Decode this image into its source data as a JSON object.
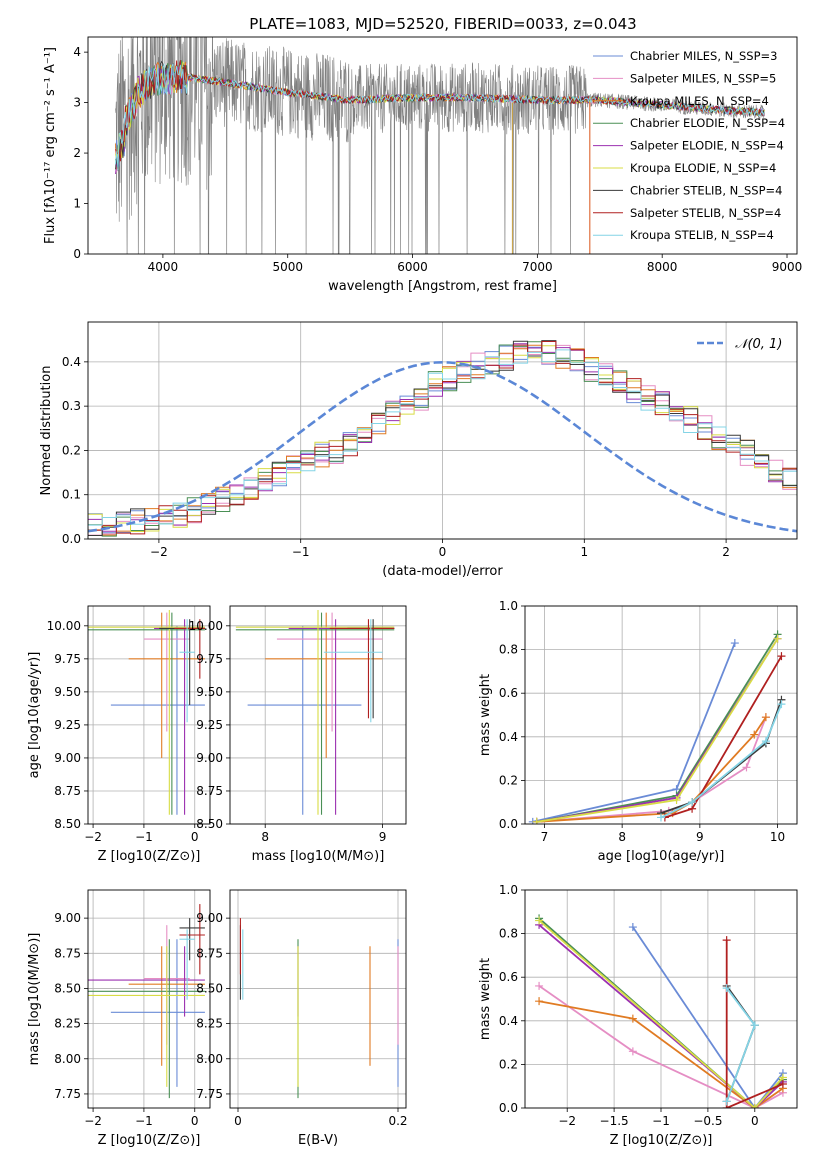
{
  "title": "PLATE=1083, MJD=52520, FIBERID=0033, z=0.043",
  "model_colors": [
    "#6a8bd6",
    "#e58ec4",
    "#e07b23",
    "#4a8f55",
    "#9b30b0",
    "#d8dc45",
    "#3a3a3a",
    "#b02020",
    "#84d4e6"
  ],
  "chart_data": [
    {
      "type": "line",
      "xlabel": "wavelength [Angstrom, rest frame]",
      "ylabel": "Flux [fλ10⁻¹⁷ erg cm⁻² s⁻¹ A⁻¹]",
      "xlim": [
        3400,
        9080
      ],
      "ylim": [
        0,
        4.3
      ],
      "xticks": [
        4000,
        5000,
        6000,
        7000,
        8000,
        9000
      ],
      "yticks": [
        0,
        1,
        2,
        3,
        4
      ],
      "legend_position": "right",
      "series": [
        {
          "name": "Chabrier MILES, N_SSP=3"
        },
        {
          "name": "Salpeter MILES, N_SSP=5"
        },
        {
          "name": "Kroupa MILES, N_SSP=4"
        },
        {
          "name": "Chabrier ELODIE, N_SSP=4"
        },
        {
          "name": "Salpeter ELODIE, N_SSP=4"
        },
        {
          "name": "Kroupa ELODIE, N_SSP=4"
        },
        {
          "name": "Chabrier STELIB, N_SSP=4"
        },
        {
          "name": "Salpeter STELIB, N_SSP=4"
        },
        {
          "name": "Kroupa STELIB, N_SSP=4"
        }
      ],
      "data_envelope": {
        "x": [
          3620,
          3700,
          3800,
          3900,
          4000,
          4200,
          4500,
          5000,
          5500,
          6000,
          6500,
          7000,
          7500,
          8000,
          8500,
          8800
        ],
        "y": [
          2.2,
          2.6,
          3.2,
          3.4,
          3.5,
          3.5,
          3.4,
          3.2,
          3.05,
          3.1,
          3.1,
          3.05,
          3.05,
          2.95,
          2.85,
          2.8
        ]
      }
    },
    {
      "type": "histogram",
      "xlabel": "(data-model)/error",
      "ylabel": "Normed distribution",
      "xlim": [
        -2.5,
        2.5
      ],
      "ylim": [
        0,
        0.49
      ],
      "xticks": [
        -2,
        -1,
        0,
        1,
        2
      ],
      "yticks": [
        0.0,
        0.1,
        0.2,
        0.3,
        0.4
      ],
      "legend": "𝒩(0, 1)",
      "legend_position": "top-right",
      "bin_edges_start": -2.6,
      "bin_width": 0.1,
      "values": [
        0.03,
        0.03,
        0.032,
        0.035,
        0.04,
        0.045,
        0.05,
        0.055,
        0.065,
        0.08,
        0.09,
        0.1,
        0.115,
        0.13,
        0.15,
        0.16,
        0.18,
        0.19,
        0.2,
        0.215,
        0.235,
        0.26,
        0.285,
        0.3,
        0.32,
        0.35,
        0.36,
        0.38,
        0.39,
        0.395,
        0.41,
        0.42,
        0.425,
        0.42,
        0.41,
        0.4,
        0.385,
        0.37,
        0.35,
        0.335,
        0.32,
        0.305,
        0.29,
        0.27,
        0.25,
        0.23,
        0.215,
        0.195,
        0.175,
        0.155,
        0.135,
        0.115,
        0.1,
        0.085,
        0.07,
        0.06,
        0.052,
        0.045,
        0.04,
        0.035,
        0.03,
        0.028
      ]
    },
    {
      "type": "errorbar",
      "xlabel": "Z [log10(Z/Z⊙)]",
      "ylabel": "age  [log10(age/yr)]",
      "xlim": [
        -2.1,
        0.3
      ],
      "ylim": [
        8.5,
        10.15
      ],
      "xticks": [
        -2,
        -1,
        0
      ],
      "yticks": [
        8.5,
        8.75,
        9.0,
        9.25,
        9.5,
        9.75,
        10.0
      ],
      "points": [
        {
          "x": -0.35,
          "xlo": -1.65,
          "xhi": 0.2,
          "y": 9.4,
          "ylo": 8.57,
          "yhi": 10.0
        },
        {
          "x": -0.55,
          "xlo": -1.0,
          "xhi": -0.1,
          "y": 9.9,
          "ylo": 9.2,
          "yhi": 10.1
        },
        {
          "x": -0.65,
          "xlo": -1.3,
          "xhi": 0.2,
          "y": 9.75,
          "ylo": 9.0,
          "yhi": 10.1
        },
        {
          "x": -0.45,
          "xlo": -2.1,
          "xhi": 0.2,
          "y": 9.97,
          "ylo": 8.57,
          "yhi": 10.1
        },
        {
          "x": -0.2,
          "xlo": -0.8,
          "xhi": 0.2,
          "y": 9.98,
          "ylo": 8.57,
          "yhi": 10.05
        },
        {
          "x": -0.5,
          "xlo": -2.1,
          "xhi": 0.2,
          "y": 9.99,
          "ylo": 8.57,
          "yhi": 10.12
        },
        {
          "x": -0.1,
          "xlo": -0.7,
          "xhi": 0.2,
          "y": 9.98,
          "ylo": 9.4,
          "yhi": 10.05
        },
        {
          "x": 0.1,
          "xlo": -0.4,
          "xhi": 0.2,
          "y": 9.98,
          "ylo": 9.6,
          "yhi": 10.05
        },
        {
          "x": -0.15,
          "xlo": -0.3,
          "xhi": 0.0,
          "y": 9.8,
          "ylo": 9.27,
          "yhi": 10.05
        }
      ]
    },
    {
      "type": "errorbar",
      "xlabel": "mass [log10(M/M⊙)]",
      "xlim": [
        7.7,
        9.2
      ],
      "ylim": [
        8.5,
        10.15
      ],
      "xticks": [
        8,
        9
      ],
      "yticks": [
        8.5,
        8.75,
        9.0,
        9.25,
        9.5,
        9.75,
        10.0
      ],
      "points": [
        {
          "x": 8.32,
          "xlo": 7.85,
          "xhi": 8.82,
          "y": 9.4,
          "ylo": 8.57,
          "yhi": 10.0
        },
        {
          "x": 8.57,
          "xlo": 8.1,
          "xhi": 9.0,
          "y": 9.9,
          "ylo": 9.2,
          "yhi": 10.1
        },
        {
          "x": 8.52,
          "xlo": 8.0,
          "xhi": 9.0,
          "y": 9.75,
          "ylo": 9.0,
          "yhi": 10.1
        },
        {
          "x": 8.48,
          "xlo": 7.75,
          "xhi": 9.1,
          "y": 9.97,
          "ylo": 8.57,
          "yhi": 10.1
        },
        {
          "x": 8.6,
          "xlo": 8.2,
          "xhi": 9.1,
          "y": 9.98,
          "ylo": 8.57,
          "yhi": 10.05
        },
        {
          "x": 8.45,
          "xlo": 7.75,
          "xhi": 9.1,
          "y": 9.99,
          "ylo": 8.57,
          "yhi": 10.12
        },
        {
          "x": 8.92,
          "xlo": 8.7,
          "xhi": 9.1,
          "y": 9.98,
          "ylo": 9.3,
          "yhi": 10.05
        },
        {
          "x": 8.88,
          "xlo": 8.55,
          "xhi": 9.1,
          "y": 9.98,
          "ylo": 9.3,
          "yhi": 10.05
        },
        {
          "x": 8.9,
          "xlo": 8.5,
          "xhi": 9.0,
          "y": 9.8,
          "ylo": 9.27,
          "yhi": 10.05
        }
      ]
    },
    {
      "type": "line",
      "xlabel": "age  [log10(age/yr)]",
      "ylabel": "mass weight",
      "xlim": [
        6.75,
        10.25
      ],
      "ylim": [
        0,
        1.0
      ],
      "xticks": [
        7,
        8,
        9,
        10
      ],
      "yticks": [
        0.0,
        0.2,
        0.4,
        0.6,
        0.8,
        1.0
      ],
      "series": [
        {
          "points": [
            [
              6.85,
              0.01
            ],
            [
              8.7,
              0.16
            ],
            [
              9.45,
              0.83
            ]
          ]
        },
        {
          "points": [
            [
              6.9,
              0.01
            ],
            [
              8.6,
              0.06
            ],
            [
              8.9,
              0.1
            ],
            [
              9.6,
              0.26
            ],
            [
              9.85,
              0.49
            ]
          ]
        },
        {
          "points": [
            [
              6.9,
              0.01
            ],
            [
              8.65,
              0.05
            ],
            [
              8.9,
              0.1
            ],
            [
              9.7,
              0.41
            ],
            [
              9.85,
              0.49
            ]
          ]
        },
        {
          "points": [
            [
              6.9,
              0.01
            ],
            [
              8.7,
              0.13
            ],
            [
              10.0,
              0.87
            ]
          ]
        },
        {
          "points": [
            [
              6.9,
              0.01
            ],
            [
              8.7,
              0.12
            ],
            [
              10.0,
              0.85
            ]
          ]
        },
        {
          "points": [
            [
              6.9,
              0.01
            ],
            [
              8.7,
              0.11
            ],
            [
              10.0,
              0.85
            ]
          ]
        },
        {
          "points": [
            [
              8.5,
              0.05
            ],
            [
              8.9,
              0.1
            ],
            [
              9.85,
              0.37
            ],
            [
              10.05,
              0.57
            ]
          ]
        },
        {
          "points": [
            [
              8.55,
              0.03
            ],
            [
              8.9,
              0.07
            ],
            [
              10.05,
              0.77
            ]
          ]
        },
        {
          "points": [
            [
              8.5,
              0.03
            ],
            [
              8.9,
              0.1
            ],
            [
              9.85,
              0.38
            ],
            [
              10.05,
              0.55
            ]
          ]
        }
      ]
    },
    {
      "type": "errorbar",
      "xlabel": "Z [log10(Z/Z⊙)]",
      "ylabel": "mass [log10(M/M⊙)]",
      "xlim": [
        -2.1,
        0.3
      ],
      "ylim": [
        7.65,
        9.2
      ],
      "xticks": [
        -2,
        -1,
        0
      ],
      "yticks": [
        7.75,
        8.0,
        8.25,
        8.5,
        8.75,
        9.0
      ],
      "points": [
        {
          "x": -0.35,
          "xlo": -1.65,
          "xhi": 0.2,
          "y": 8.33,
          "ylo": 7.8,
          "yhi": 8.85
        },
        {
          "x": -0.55,
          "xlo": -1.0,
          "xhi": -0.1,
          "y": 8.57,
          "ylo": 8.1,
          "yhi": 8.95
        },
        {
          "x": -0.65,
          "xlo": -1.3,
          "xhi": 0.2,
          "y": 8.53,
          "ylo": 7.95,
          "yhi": 8.8
        },
        {
          "x": -0.5,
          "xlo": -2.1,
          "xhi": 0.2,
          "y": 8.48,
          "ylo": 7.72,
          "yhi": 8.85
        },
        {
          "x": -0.2,
          "xlo": -2.1,
          "xhi": 0.2,
          "y": 8.56,
          "ylo": 8.3,
          "yhi": 8.8
        },
        {
          "x": -0.55,
          "xlo": -2.1,
          "xhi": 0.2,
          "y": 8.45,
          "ylo": 7.8,
          "yhi": 8.8
        },
        {
          "x": -0.1,
          "xlo": -0.3,
          "xhi": 0.2,
          "y": 8.93,
          "ylo": 8.7,
          "yhi": 9.0
        },
        {
          "x": 0.1,
          "xlo": -0.3,
          "xhi": 0.2,
          "y": 8.88,
          "ylo": 8.6,
          "yhi": 9.1
        },
        {
          "x": -0.15,
          "xlo": -0.3,
          "xhi": 0.0,
          "y": 8.85,
          "ylo": 8.42,
          "yhi": 8.92
        }
      ]
    },
    {
      "type": "errorbar",
      "xlabel": "E(B-V)",
      "xlim": [
        -0.01,
        0.21
      ],
      "ylim": [
        7.65,
        9.2
      ],
      "xticks": [
        0.0,
        0.2
      ],
      "yticks": [
        7.75,
        8.0,
        8.25,
        8.5,
        8.75,
        9.0
      ],
      "points": [
        {
          "x": 0.2,
          "ylo": 7.8,
          "yhi": 8.85
        },
        {
          "x": 0.2,
          "ylo": 8.1,
          "yhi": 8.8
        },
        {
          "x": 0.165,
          "ylo": 7.95,
          "yhi": 8.8
        },
        {
          "x": 0.075,
          "ylo": 7.72,
          "yhi": 8.85
        },
        {
          "x": 0.075,
          "ylo": 8.3,
          "yhi": 8.8
        },
        {
          "x": 0.075,
          "ylo": 7.8,
          "yhi": 8.8
        },
        {
          "x": 0.003,
          "ylo": 8.42,
          "yhi": 8.95
        },
        {
          "x": 0.003,
          "ylo": 8.6,
          "yhi": 9.0
        },
        {
          "x": 0.006,
          "ylo": 8.42,
          "yhi": 8.92
        }
      ]
    },
    {
      "type": "line",
      "xlabel": "Z [log10(Z/Z⊙)]",
      "ylabel": "mass weight",
      "xlim": [
        -2.45,
        0.45
      ],
      "ylim": [
        0,
        1.0
      ],
      "xticks": [
        -2.0,
        -1.5,
        -1.0,
        -0.5,
        0.0
      ],
      "yticks": [
        0.0,
        0.2,
        0.4,
        0.6,
        0.8,
        1.0
      ],
      "series": [
        {
          "points": [
            [
              -1.3,
              0.83
            ],
            [
              0.0,
              0.0
            ],
            [
              0.3,
              0.16
            ]
          ]
        },
        {
          "points": [
            [
              -2.3,
              0.56
            ],
            [
              -1.3,
              0.26
            ],
            [
              0.0,
              0.0
            ],
            [
              0.3,
              0.07
            ]
          ]
        },
        {
          "points": [
            [
              -2.3,
              0.49
            ],
            [
              -1.3,
              0.41
            ],
            [
              0.0,
              0.0
            ],
            [
              0.3,
              0.09
            ]
          ]
        },
        {
          "points": [
            [
              -2.3,
              0.87
            ],
            [
              0.0,
              0.0
            ],
            [
              0.3,
              0.13
            ]
          ]
        },
        {
          "points": [
            [
              -2.3,
              0.84
            ],
            [
              0.0,
              0.0
            ],
            [
              0.3,
              0.12
            ]
          ]
        },
        {
          "points": [
            [
              -2.3,
              0.86
            ],
            [
              0.0,
              0.0
            ],
            [
              0.3,
              0.14
            ]
          ]
        },
        {
          "points": [
            [
              -0.3,
              0.56
            ],
            [
              0.0,
              0.38
            ],
            [
              -0.3,
              0.03
            ]
          ]
        },
        {
          "points": [
            [
              -0.3,
              0.77
            ],
            [
              -0.3,
              0.0
            ],
            [
              0.3,
              0.11
            ]
          ]
        },
        {
          "points": [
            [
              -0.3,
              0.55
            ],
            [
              0.0,
              0.38
            ],
            [
              -0.3,
              0.03
            ]
          ]
        }
      ]
    }
  ]
}
